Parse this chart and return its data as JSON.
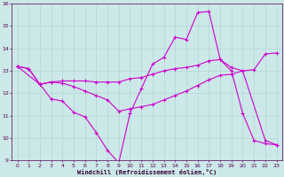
{
  "xlabel": "Windchill (Refroidissement éolien,°C)",
  "bg_color": "#cce8e8",
  "grid_color": "#aad4d4",
  "line_color": "#cc00cc",
  "xlim": [
    -0.5,
    23.5
  ],
  "ylim": [
    9,
    16
  ],
  "xticks": [
    0,
    1,
    2,
    3,
    4,
    5,
    6,
    7,
    8,
    9,
    10,
    11,
    12,
    13,
    14,
    15,
    16,
    17,
    18,
    19,
    20,
    21,
    22,
    23
  ],
  "yticks": [
    9,
    10,
    11,
    12,
    13,
    14,
    15,
    16
  ],
  "line1_x": [
    0,
    1,
    2,
    3,
    4,
    5,
    6,
    7,
    8,
    9,
    10,
    11,
    12,
    13,
    14,
    15,
    16,
    17,
    18,
    19,
    20,
    21,
    22,
    23
  ],
  "line1_y": [
    13.2,
    13.1,
    12.4,
    11.75,
    11.65,
    11.15,
    10.95,
    10.25,
    9.45,
    8.9,
    11.1,
    12.2,
    13.3,
    13.6,
    14.5,
    14.4,
    15.6,
    15.65,
    13.5,
    13.0,
    11.1,
    9.9,
    9.75,
    9.7
  ],
  "line2_x": [
    0,
    1,
    2,
    3,
    4,
    5,
    6,
    7,
    8,
    9,
    10,
    11,
    12,
    13,
    14,
    15,
    16,
    17,
    18,
    19,
    20,
    21,
    22,
    23
  ],
  "line2_y": [
    13.2,
    13.1,
    12.4,
    12.5,
    12.55,
    12.55,
    12.55,
    12.5,
    12.5,
    12.5,
    12.65,
    12.7,
    12.85,
    13.0,
    13.1,
    13.15,
    13.25,
    13.45,
    13.5,
    13.15,
    13.0,
    13.05,
    13.75,
    13.8
  ],
  "line3_x": [
    0,
    2,
    3,
    4,
    5,
    6,
    7,
    8,
    9,
    10,
    11,
    12,
    13,
    14,
    15,
    16,
    17,
    18,
    19,
    20,
    22,
    23
  ],
  "line3_y": [
    13.2,
    12.4,
    12.5,
    12.45,
    12.3,
    12.1,
    11.9,
    11.7,
    11.2,
    11.3,
    11.4,
    11.5,
    11.7,
    11.9,
    12.1,
    12.35,
    12.6,
    12.8,
    12.85,
    13.0,
    9.9,
    9.7
  ]
}
